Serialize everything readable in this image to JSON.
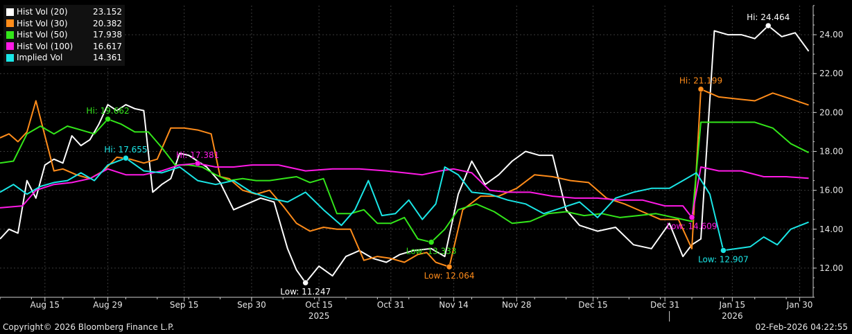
{
  "colors": {
    "background": "#000000",
    "axis": "#cfcfcf",
    "grid": "#3a3a3a",
    "series": [
      "#ffffff",
      "#ff8c1a",
      "#33e61a",
      "#ff1ae6",
      "#1ae6e6"
    ]
  },
  "chart_data": {
    "type": "line",
    "ylim": [
      10.5,
      25.5
    ],
    "y_ticks": [
      12,
      14,
      16,
      18,
      20,
      22,
      24
    ],
    "y_tick_labels": [
      "12.00",
      "14.00",
      "16.00",
      "18.00",
      "20.00",
      "22.00",
      "24.00"
    ],
    "y_axis_position": "right",
    "grid": true,
    "legend_position": "top-left",
    "x_start": "2025-08-05",
    "x_end": "2026-02-02",
    "x_ticks": [
      {
        "date": "2025-08-15",
        "label": "Aug 15"
      },
      {
        "date": "2025-08-29",
        "label": "Aug 29"
      },
      {
        "date": "2025-09-15",
        "label": "Sep 15"
      },
      {
        "date": "2025-09-30",
        "label": "Sep 30"
      },
      {
        "date": "2025-10-15",
        "label": "Oct 15"
      },
      {
        "date": "2025-10-31",
        "label": "Oct 31"
      },
      {
        "date": "2025-11-14",
        "label": "Nov 14"
      },
      {
        "date": "2025-11-28",
        "label": "Nov 28"
      },
      {
        "date": "2025-12-15",
        "label": "Dec 15"
      },
      {
        "date": "2025-12-31",
        "label": "Dec 31"
      },
      {
        "date": "2026-01-15",
        "label": "Jan 15"
      },
      {
        "date": "2026-01-30",
        "label": "Jan 30"
      }
    ],
    "year_labels": [
      {
        "date": "2025-10-15",
        "label": "2025"
      },
      {
        "date": "2026-01-15",
        "label": "2026"
      }
    ],
    "year_divider_date": "2026-01-01",
    "series": [
      {
        "name": "Hist Vol (20)",
        "last": "23.152",
        "x": [
          "2025-08-05",
          "2025-08-07",
          "2025-08-09",
          "2025-08-11",
          "2025-08-13",
          "2025-08-15",
          "2025-08-17",
          "2025-08-19",
          "2025-08-21",
          "2025-08-23",
          "2025-08-25",
          "2025-08-27",
          "2025-08-29",
          "2025-08-31",
          "2025-09-02",
          "2025-09-04",
          "2025-09-06",
          "2025-09-08",
          "2025-09-10",
          "2025-09-12",
          "2025-09-14",
          "2025-09-16",
          "2025-09-18",
          "2025-09-20",
          "2025-09-23",
          "2025-09-26",
          "2025-09-29",
          "2025-10-02",
          "2025-10-05",
          "2025-10-08",
          "2025-10-10",
          "2025-10-12",
          "2025-10-15",
          "2025-10-18",
          "2025-10-21",
          "2025-10-24",
          "2025-10-27",
          "2025-10-30",
          "2025-11-02",
          "2025-11-05",
          "2025-11-09",
          "2025-11-12",
          "2025-11-15",
          "2025-11-18",
          "2025-11-21",
          "2025-11-24",
          "2025-11-27",
          "2025-11-30",
          "2025-12-03",
          "2025-12-06",
          "2025-12-09",
          "2025-12-12",
          "2025-12-16",
          "2025-12-20",
          "2025-12-24",
          "2025-12-28",
          "2026-01-01",
          "2026-01-04",
          "2026-01-06",
          "2026-01-08",
          "2026-01-11",
          "2026-01-14",
          "2026-01-17",
          "2026-01-20",
          "2026-01-23",
          "2026-01-26",
          "2026-01-29",
          "2026-02-01"
        ],
        "y": [
          13.5,
          14.0,
          13.8,
          16.5,
          15.6,
          17.3,
          17.6,
          17.4,
          18.8,
          18.3,
          18.6,
          19.4,
          20.4,
          20.1,
          20.4,
          20.2,
          20.1,
          15.9,
          16.3,
          16.6,
          17.9,
          17.8,
          17.5,
          17.2,
          16.4,
          15.0,
          15.3,
          15.6,
          15.4,
          13.0,
          11.9,
          11.247,
          12.1,
          11.6,
          12.6,
          12.9,
          12.5,
          12.3,
          12.7,
          12.9,
          13.0,
          12.6,
          15.8,
          17.5,
          16.3,
          16.8,
          17.5,
          18.0,
          17.8,
          17.8,
          15.0,
          14.2,
          13.9,
          14.1,
          13.2,
          13.0,
          14.3,
          12.6,
          13.2,
          13.5,
          24.2,
          24.0,
          24.0,
          23.8,
          24.464,
          23.9,
          24.1,
          23.152
        ]
      },
      {
        "name": "Hist Vol (30)",
        "last": "20.382",
        "x": [
          "2025-08-05",
          "2025-08-07",
          "2025-08-09",
          "2025-08-11",
          "2025-08-13",
          "2025-08-15",
          "2025-08-17",
          "2025-08-19",
          "2025-08-22",
          "2025-08-25",
          "2025-08-28",
          "2025-08-31",
          "2025-09-03",
          "2025-09-06",
          "2025-09-09",
          "2025-09-12",
          "2025-09-15",
          "2025-09-18",
          "2025-09-21",
          "2025-09-23",
          "2025-09-25",
          "2025-09-28",
          "2025-10-01",
          "2025-10-04",
          "2025-10-07",
          "2025-10-10",
          "2025-10-13",
          "2025-10-16",
          "2025-10-19",
          "2025-10-22",
          "2025-10-25",
          "2025-10-28",
          "2025-10-31",
          "2025-11-03",
          "2025-11-06",
          "2025-11-08",
          "2025-11-10",
          "2025-11-13",
          "2025-11-16",
          "2025-11-20",
          "2025-11-24",
          "2025-11-28",
          "2025-12-02",
          "2025-12-06",
          "2025-12-10",
          "2025-12-14",
          "2025-12-18",
          "2025-12-22",
          "2025-12-26",
          "2025-12-30",
          "2026-01-03",
          "2026-01-06",
          "2026-01-08",
          "2026-01-12",
          "2026-01-16",
          "2026-01-20",
          "2026-01-24",
          "2026-01-28",
          "2026-02-01"
        ],
        "y": [
          18.7,
          18.9,
          18.5,
          19.0,
          20.6,
          18.8,
          17.0,
          17.1,
          16.8,
          16.6,
          17.0,
          17.7,
          17.6,
          17.4,
          17.6,
          19.2,
          19.2,
          19.1,
          18.9,
          16.7,
          16.6,
          16.0,
          15.8,
          16.0,
          15.2,
          14.3,
          13.9,
          14.1,
          14.0,
          14.0,
          12.4,
          12.6,
          12.5,
          12.3,
          12.7,
          12.8,
          12.3,
          12.064,
          15.0,
          15.7,
          15.7,
          16.1,
          16.8,
          16.7,
          16.5,
          16.4,
          15.6,
          15.3,
          14.9,
          14.5,
          14.5,
          13.0,
          21.199,
          20.8,
          20.7,
          20.6,
          21.0,
          20.7,
          20.382
        ]
      },
      {
        "name": "Hist Vol (50)",
        "last": "17.938",
        "x": [
          "2025-08-05",
          "2025-08-08",
          "2025-08-11",
          "2025-08-14",
          "2025-08-17",
          "2025-08-20",
          "2025-08-23",
          "2025-08-26",
          "2025-08-29",
          "2025-09-01",
          "2025-09-04",
          "2025-09-07",
          "2025-09-10",
          "2025-09-13",
          "2025-09-16",
          "2025-09-19",
          "2025-09-22",
          "2025-09-25",
          "2025-09-28",
          "2025-10-01",
          "2025-10-04",
          "2025-10-07",
          "2025-10-10",
          "2025-10-13",
          "2025-10-16",
          "2025-10-19",
          "2025-10-22",
          "2025-10-25",
          "2025-10-28",
          "2025-10-31",
          "2025-11-03",
          "2025-11-06",
          "2025-11-09",
          "2025-11-12",
          "2025-11-15",
          "2025-11-19",
          "2025-11-23",
          "2025-11-27",
          "2025-12-01",
          "2025-12-05",
          "2025-12-09",
          "2025-12-13",
          "2025-12-17",
          "2025-12-21",
          "2025-12-25",
          "2025-12-29",
          "2026-01-02",
          "2026-01-06",
          "2026-01-08",
          "2026-01-12",
          "2026-01-16",
          "2026-01-20",
          "2026-01-24",
          "2026-01-28",
          "2026-02-01"
        ],
        "y": [
          17.4,
          17.5,
          18.9,
          19.3,
          18.9,
          19.3,
          19.1,
          18.9,
          19.662,
          19.4,
          19.0,
          19.0,
          18.2,
          17.3,
          17.3,
          17.2,
          16.8,
          16.5,
          16.6,
          16.5,
          16.5,
          16.6,
          16.7,
          16.4,
          16.6,
          14.8,
          14.8,
          15.0,
          14.3,
          14.3,
          14.6,
          13.5,
          13.333,
          14.0,
          15.0,
          15.3,
          14.9,
          14.3,
          14.4,
          14.8,
          14.9,
          14.7,
          14.8,
          14.6,
          14.7,
          14.8,
          14.6,
          14.4,
          19.5,
          19.5,
          19.5,
          19.5,
          19.2,
          18.4,
          17.938
        ]
      },
      {
        "name": "Hist Vol (100)",
        "last": "16.617",
        "x": [
          "2025-08-05",
          "2025-08-10",
          "2025-08-13",
          "2025-08-17",
          "2025-08-21",
          "2025-08-25",
          "2025-08-29",
          "2025-09-02",
          "2025-09-06",
          "2025-09-10",
          "2025-09-14",
          "2025-09-18",
          "2025-09-22",
          "2025-09-26",
          "2025-09-30",
          "2025-10-06",
          "2025-10-12",
          "2025-10-18",
          "2025-10-24",
          "2025-10-30",
          "2025-11-03",
          "2025-11-07",
          "2025-11-11",
          "2025-11-14",
          "2025-11-18",
          "2025-11-22",
          "2025-11-26",
          "2025-12-01",
          "2025-12-06",
          "2025-12-11",
          "2025-12-16",
          "2025-12-21",
          "2025-12-26",
          "2025-12-31",
          "2026-01-04",
          "2026-01-06",
          "2026-01-08",
          "2026-01-12",
          "2026-01-17",
          "2026-01-22",
          "2026-01-27",
          "2026-02-01"
        ],
        "y": [
          15.1,
          15.2,
          16.0,
          16.3,
          16.4,
          16.6,
          17.1,
          16.8,
          16.8,
          17.0,
          17.3,
          17.381,
          17.2,
          17.2,
          17.3,
          17.3,
          17.0,
          17.1,
          17.1,
          17.0,
          16.9,
          16.8,
          17.0,
          17.1,
          16.9,
          16.0,
          15.9,
          15.9,
          15.7,
          15.6,
          15.6,
          15.5,
          15.5,
          15.2,
          15.2,
          14.609,
          17.2,
          17.0,
          17.0,
          16.7,
          16.7,
          16.617
        ]
      },
      {
        "name": "Implied Vol",
        "last": "14.361",
        "x": [
          "2025-08-05",
          "2025-08-08",
          "2025-08-11",
          "2025-08-14",
          "2025-08-17",
          "2025-08-20",
          "2025-08-23",
          "2025-08-26",
          "2025-08-29",
          "2025-09-02",
          "2025-09-06",
          "2025-09-10",
          "2025-09-14",
          "2025-09-18",
          "2025-09-22",
          "2025-09-26",
          "2025-09-30",
          "2025-10-04",
          "2025-10-08",
          "2025-10-12",
          "2025-10-16",
          "2025-10-20",
          "2025-10-23",
          "2025-10-26",
          "2025-10-29",
          "2025-11-01",
          "2025-11-04",
          "2025-11-07",
          "2025-11-10",
          "2025-11-12",
          "2025-11-15",
          "2025-11-18",
          "2025-11-22",
          "2025-11-26",
          "2025-11-30",
          "2025-12-04",
          "2025-12-08",
          "2025-12-12",
          "2025-12-16",
          "2025-12-20",
          "2025-12-24",
          "2025-12-28",
          "2026-01-01",
          "2026-01-04",
          "2026-01-07",
          "2026-01-10",
          "2026-01-13",
          "2026-01-16",
          "2026-01-19",
          "2026-01-22",
          "2026-01-25",
          "2026-01-28",
          "2026-02-01"
        ],
        "y": [
          15.9,
          16.3,
          15.8,
          16.2,
          16.4,
          16.5,
          16.9,
          16.5,
          17.3,
          17.655,
          17.0,
          16.9,
          17.2,
          16.5,
          16.3,
          16.5,
          15.9,
          15.6,
          15.4,
          15.9,
          15.0,
          14.2,
          15.0,
          16.5,
          14.7,
          14.8,
          15.5,
          14.5,
          15.3,
          17.2,
          16.8,
          15.9,
          15.8,
          15.5,
          15.3,
          14.8,
          15.1,
          15.4,
          14.6,
          15.6,
          15.9,
          16.1,
          16.1,
          16.5,
          16.9,
          15.8,
          12.907,
          13.0,
          13.1,
          13.6,
          13.2,
          14.0,
          14.361
        ]
      }
    ],
    "annotations": [
      {
        "text": "Hi: 24.464",
        "x": "2026-01-23",
        "y": 24.464,
        "series": 0
      },
      {
        "text": "Low: 11.247",
        "x": "2025-10-12",
        "y": 11.247,
        "series": 0
      },
      {
        "text": "Hi: 21.199",
        "x": "2026-01-08",
        "y": 21.199,
        "series": 1
      },
      {
        "text": "Low: 12.064",
        "x": "2025-11-13",
        "y": 12.064,
        "series": 1
      },
      {
        "text": "Hi: 19.662",
        "x": "2025-08-29",
        "y": 19.662,
        "series": 2
      },
      {
        "text": "Low: 13.333",
        "x": "2025-11-09",
        "y": 13.333,
        "series": 2
      },
      {
        "text": "Hi: 17.381",
        "x": "2025-09-18",
        "y": 17.381,
        "series": 3
      },
      {
        "text": "Low: 14.609",
        "x": "2026-01-06",
        "y": 14.609,
        "series": 3
      },
      {
        "text": "Hi: 17.655",
        "x": "2025-09-02",
        "y": 17.655,
        "series": 4
      },
      {
        "text": "Low: 12.907",
        "x": "2026-01-13",
        "y": 12.907,
        "series": 4
      }
    ]
  },
  "footer": {
    "copyright": "Copyright© 2026 Bloomberg Finance L.P.",
    "timestamp": "02-Feb-2026 04:22:55"
  }
}
